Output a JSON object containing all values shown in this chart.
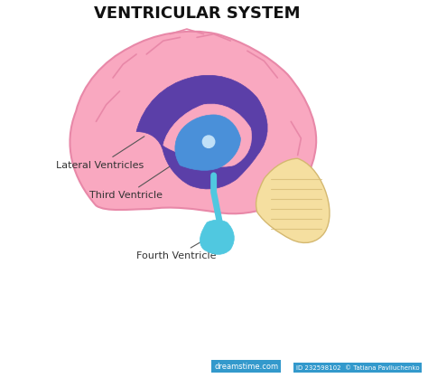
{
  "title": "VENTRICULAR SYSTEM",
  "title_fontsize": 13,
  "title_fontweight": "bold",
  "bg_color": "#ffffff",
  "brain_color": "#F9A8C0",
  "brain_outline_color": "#F080A0",
  "lateral_ventricle_color": "#5B3FA8",
  "third_ventricle_color": "#4A90D9",
  "fourth_ventricle_color": "#50C8E0",
  "cerebellum_color": "#F5DFA0",
  "cerebellum_outline_color": "#E8C870",
  "label_color": "#555555",
  "label_fontsize": 8,
  "labels": {
    "lateral": "Lateral Ventricles",
    "third": "Third Ventricle",
    "fourth": "Fourth Ventricle"
  },
  "watermark": "232598102",
  "artist": "Tatiana Pavliuchenko"
}
